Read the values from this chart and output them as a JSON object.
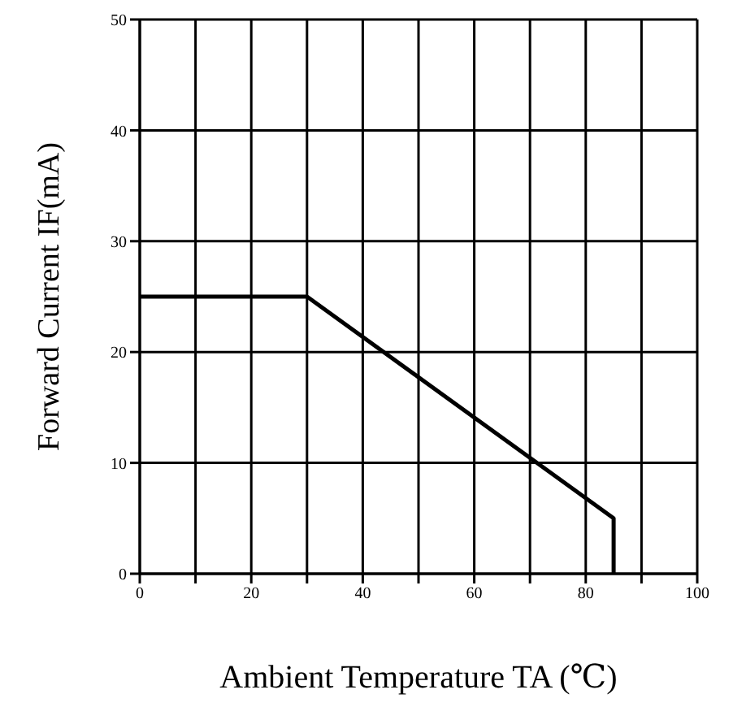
{
  "chart_data": {
    "type": "line",
    "xlabel": "Ambient Temperature TA (℃)",
    "ylabel": "Forward Current IF(mA)",
    "x": [
      0,
      30,
      85,
      85
    ],
    "series": [
      {
        "color": "#000000",
        "values": [
          25,
          25,
          5,
          0
        ]
      }
    ],
    "xlim": [
      0,
      100
    ],
    "xticks": [
      0,
      {
        "value": 10,
        "label": null
      },
      20,
      {
        "value": 30,
        "label": null
      },
      40,
      {
        "value": 50,
        "label": null
      },
      60,
      {
        "value": 70,
        "label": null
      },
      80,
      {
        "value": 90,
        "label": null
      },
      100
    ],
    "ylim": [
      0,
      50
    ],
    "yticks": [
      0,
      10,
      20,
      30,
      40,
      50
    ],
    "grid": true,
    "legend": false,
    "marker": "none",
    "line_style": "solid"
  }
}
